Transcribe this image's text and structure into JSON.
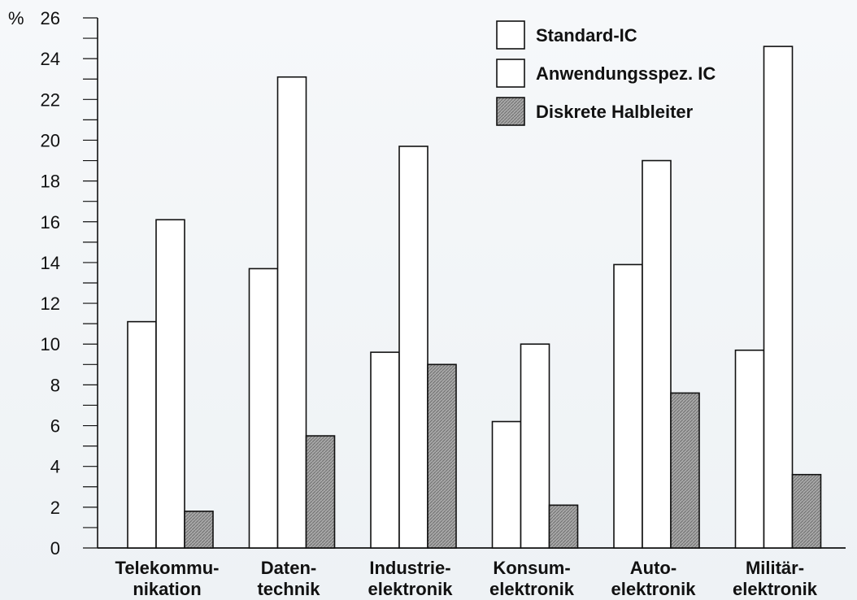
{
  "chart_data": {
    "type": "bar",
    "y_unit": "%",
    "categories": [
      [
        "Telekommu-",
        "nikation"
      ],
      [
        "Daten-",
        "technik"
      ],
      [
        "Industrie-",
        "elektronik"
      ],
      [
        "Konsum-",
        "elektronik"
      ],
      [
        "Auto-",
        "elektronik"
      ],
      [
        "Militär-",
        "elektronik"
      ]
    ],
    "series": [
      {
        "name": "Standard-IC",
        "values": [
          11.1,
          13.7,
          9.6,
          6.2,
          13.9,
          9.7
        ],
        "color": "#ffffff"
      },
      {
        "name": "Anwendungsspez. IC",
        "values": [
          16.1,
          23.1,
          19.7,
          10.0,
          19.0,
          24.6
        ],
        "color": "#ffffff"
      },
      {
        "name": "Diskrete Halbleiter",
        "values": [
          1.8,
          5.5,
          9.0,
          2.1,
          7.6,
          3.6
        ],
        "color": "#9c9c9c"
      }
    ],
    "ylim": [
      0,
      26
    ],
    "y_ticks": [
      0,
      2,
      4,
      6,
      8,
      10,
      12,
      14,
      16,
      18,
      20,
      22,
      24,
      26
    ],
    "minor_tick_step": 1,
    "legend_position": "top-right",
    "grid": false
  }
}
